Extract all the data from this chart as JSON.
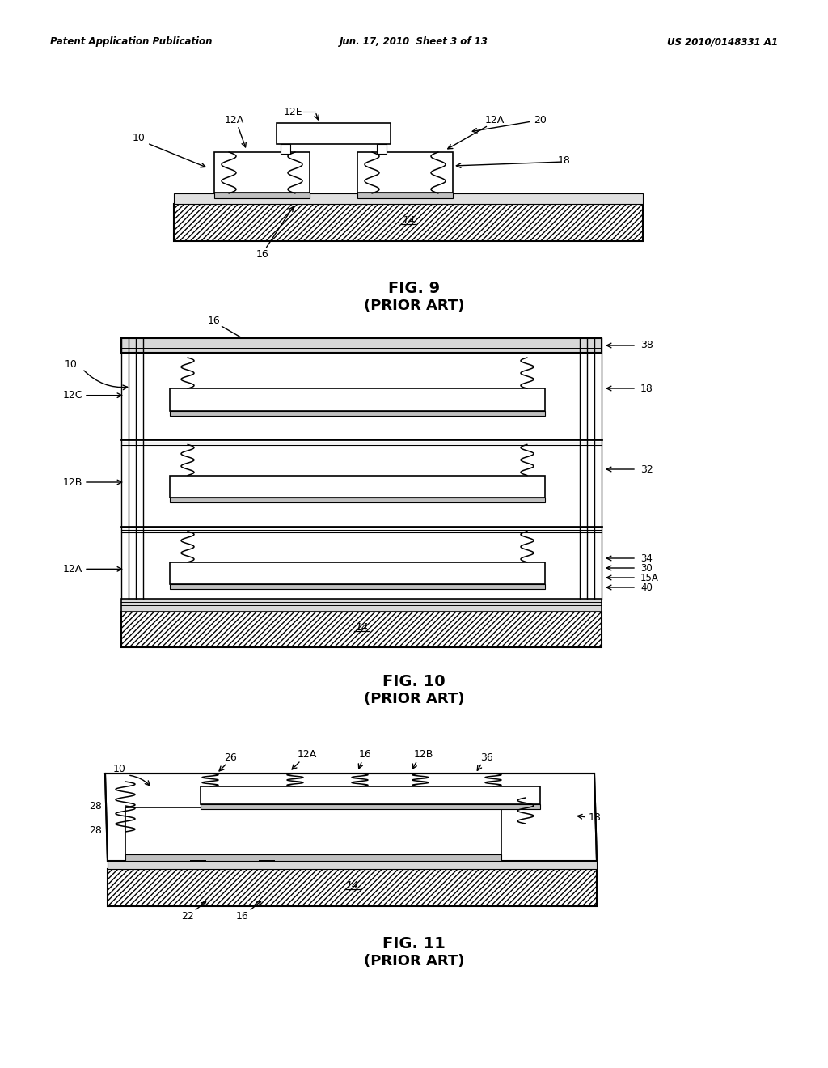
{
  "bg_color": "#ffffff",
  "header_left": "Patent Application Publication",
  "header_center": "Jun. 17, 2010  Sheet 3 of 13",
  "header_right": "US 2010/0148331 A1",
  "fig9_caption": "FIG. 9",
  "fig9_subcaption": "(PRIOR ART)",
  "fig10_caption": "FIG. 10",
  "fig10_subcaption": "(PRIOR ART)",
  "fig11_caption": "FIG. 11",
  "fig11_subcaption": "(PRIOR ART)"
}
